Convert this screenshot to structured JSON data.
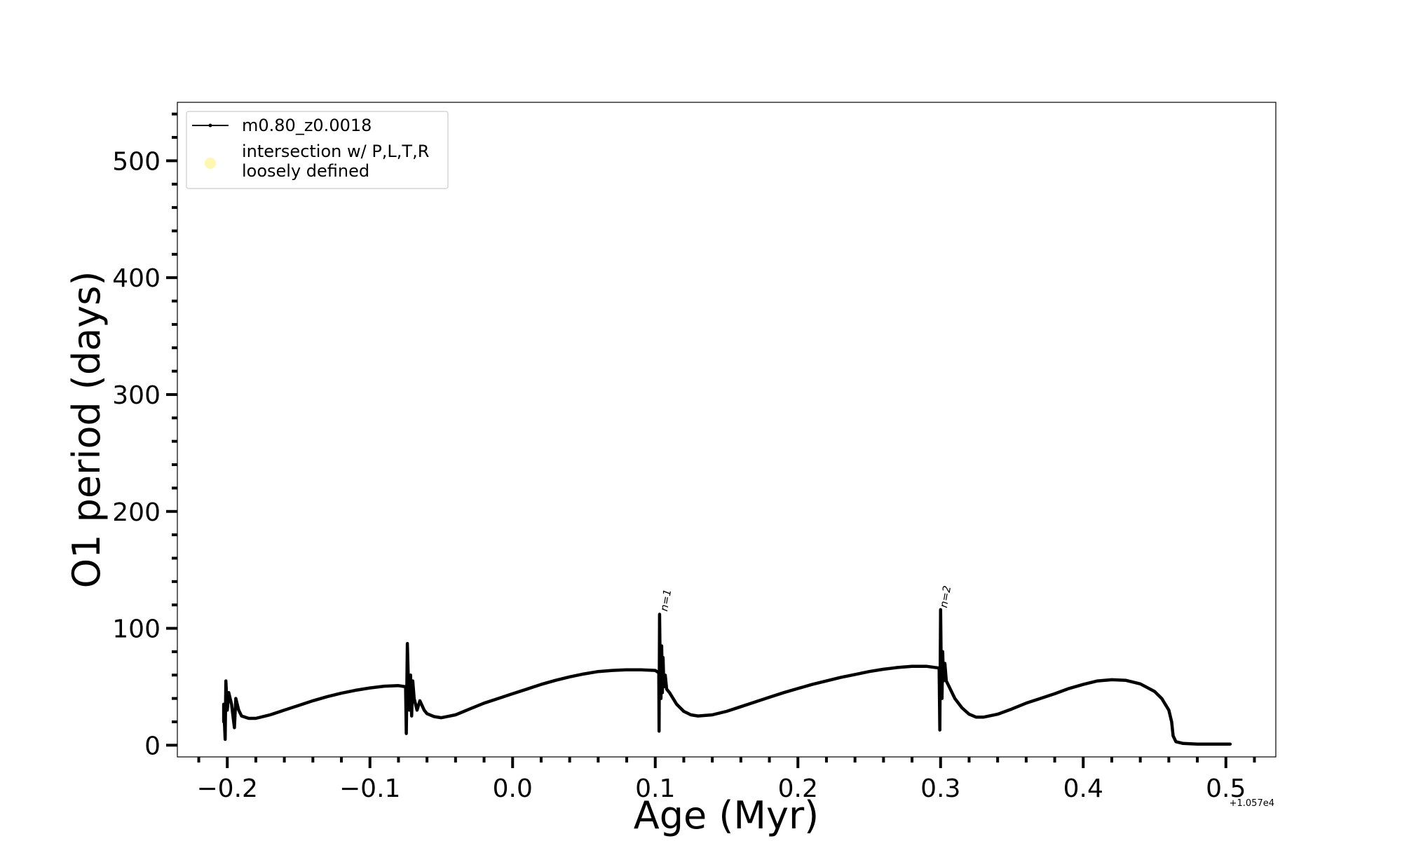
{
  "chart_data": {
    "type": "line",
    "xlabel": "Age (Myr)",
    "ylabel": "O1 period (days)",
    "x_offset_label": "+1.057e4",
    "xlim": [
      -0.235,
      0.535
    ],
    "ylim": [
      -10,
      550
    ],
    "x_ticks": [
      -0.2,
      -0.1,
      0.0,
      0.1,
      0.2,
      0.3,
      0.4,
      0.5
    ],
    "x_tick_labels": [
      "−0.2",
      "−0.1",
      "0.0",
      "0.1",
      "0.2",
      "0.3",
      "0.4",
      "0.5"
    ],
    "y_ticks": [
      0,
      100,
      200,
      300,
      400,
      500
    ],
    "y_tick_labels": [
      "0",
      "100",
      "200",
      "300",
      "400",
      "500"
    ],
    "grid": false,
    "legend": {
      "placement": "upper-left",
      "entries": [
        {
          "label": "m0.80_z0.0018",
          "marker": "line-dot",
          "color": "#000000"
        },
        {
          "label_lines": [
            "intersection w/ P,L,T,R",
            "loosely defined"
          ],
          "marker": "circle",
          "color": "#fff7b0"
        }
      ]
    },
    "annotations": [
      {
        "text": "n=1",
        "x": 0.105,
        "y": 113
      },
      {
        "text": "n=2",
        "x": 0.301,
        "y": 116
      }
    ],
    "series": [
      {
        "name": "m0.80_z0.0018",
        "color": "#000000",
        "points": [
          [
            -0.2025,
            20
          ],
          [
            -0.2025,
            35
          ],
          [
            -0.2015,
            5
          ],
          [
            -0.201,
            55
          ],
          [
            -0.2,
            30
          ],
          [
            -0.199,
            45
          ],
          [
            -0.197,
            35
          ],
          [
            -0.195,
            15
          ],
          [
            -0.194,
            40
          ],
          [
            -0.192,
            30
          ],
          [
            -0.19,
            25
          ],
          [
            -0.185,
            23
          ],
          [
            -0.18,
            23
          ],
          [
            -0.17,
            26
          ],
          [
            -0.16,
            30
          ],
          [
            -0.15,
            34
          ],
          [
            -0.14,
            38
          ],
          [
            -0.13,
            41.5
          ],
          [
            -0.12,
            44.5
          ],
          [
            -0.11,
            47
          ],
          [
            -0.1,
            49
          ],
          [
            -0.09,
            50.5
          ],
          [
            -0.08,
            51
          ],
          [
            -0.075,
            50
          ],
          [
            -0.0745,
            10
          ],
          [
            -0.0738,
            87
          ],
          [
            -0.0732,
            60
          ],
          [
            -0.0725,
            30
          ],
          [
            -0.0715,
            60
          ],
          [
            -0.0708,
            25
          ],
          [
            -0.07,
            55
          ],
          [
            -0.069,
            40
          ],
          [
            -0.067,
            30
          ],
          [
            -0.065,
            38
          ],
          [
            -0.062,
            30
          ],
          [
            -0.06,
            27
          ],
          [
            -0.055,
            24.5
          ],
          [
            -0.05,
            23.5
          ],
          [
            -0.04,
            26
          ],
          [
            -0.03,
            31
          ],
          [
            -0.02,
            36
          ],
          [
            -0.01,
            40
          ],
          [
            0.0,
            44
          ],
          [
            0.01,
            48
          ],
          [
            0.02,
            52
          ],
          [
            0.03,
            55.5
          ],
          [
            0.04,
            58.5
          ],
          [
            0.05,
            61
          ],
          [
            0.06,
            63
          ],
          [
            0.07,
            64
          ],
          [
            0.08,
            64.5
          ],
          [
            0.09,
            64.5
          ],
          [
            0.1,
            64
          ],
          [
            0.1025,
            62
          ],
          [
            0.1027,
            12
          ],
          [
            0.103,
            112
          ],
          [
            0.1035,
            60
          ],
          [
            0.104,
            40
          ],
          [
            0.1045,
            85
          ],
          [
            0.105,
            45
          ],
          [
            0.1055,
            75
          ],
          [
            0.106,
            50
          ],
          [
            0.107,
            60
          ],
          [
            0.108,
            48
          ],
          [
            0.11,
            45
          ],
          [
            0.115,
            35
          ],
          [
            0.12,
            29
          ],
          [
            0.125,
            26
          ],
          [
            0.13,
            25
          ],
          [
            0.14,
            26
          ],
          [
            0.15,
            29
          ],
          [
            0.16,
            33
          ],
          [
            0.17,
            37
          ],
          [
            0.18,
            41
          ],
          [
            0.19,
            45
          ],
          [
            0.2,
            48.5
          ],
          [
            0.21,
            52
          ],
          [
            0.22,
            55
          ],
          [
            0.23,
            58
          ],
          [
            0.24,
            60.5
          ],
          [
            0.25,
            63
          ],
          [
            0.26,
            65
          ],
          [
            0.27,
            66.5
          ],
          [
            0.28,
            67.5
          ],
          [
            0.29,
            67.5
          ],
          [
            0.299,
            66
          ],
          [
            0.2995,
            13
          ],
          [
            0.3,
            116
          ],
          [
            0.3005,
            60
          ],
          [
            0.301,
            40
          ],
          [
            0.3015,
            80
          ],
          [
            0.302,
            55
          ],
          [
            0.303,
            70
          ],
          [
            0.304,
            55
          ],
          [
            0.306,
            50
          ],
          [
            0.31,
            40
          ],
          [
            0.315,
            32
          ],
          [
            0.32,
            26.5
          ],
          [
            0.325,
            24
          ],
          [
            0.33,
            24
          ],
          [
            0.34,
            26.5
          ],
          [
            0.35,
            31
          ],
          [
            0.36,
            36
          ],
          [
            0.37,
            40
          ],
          [
            0.38,
            44
          ],
          [
            0.39,
            48.5
          ],
          [
            0.4,
            52
          ],
          [
            0.41,
            55
          ],
          [
            0.42,
            56
          ],
          [
            0.43,
            55.5
          ],
          [
            0.44,
            52.5
          ],
          [
            0.45,
            46
          ],
          [
            0.455,
            40
          ],
          [
            0.46,
            30
          ],
          [
            0.462,
            20
          ],
          [
            0.463,
            8
          ],
          [
            0.465,
            3
          ],
          [
            0.47,
            1.5
          ],
          [
            0.48,
            1
          ],
          [
            0.49,
            1
          ],
          [
            0.5,
            1
          ],
          [
            0.503,
            1
          ]
        ]
      }
    ]
  }
}
